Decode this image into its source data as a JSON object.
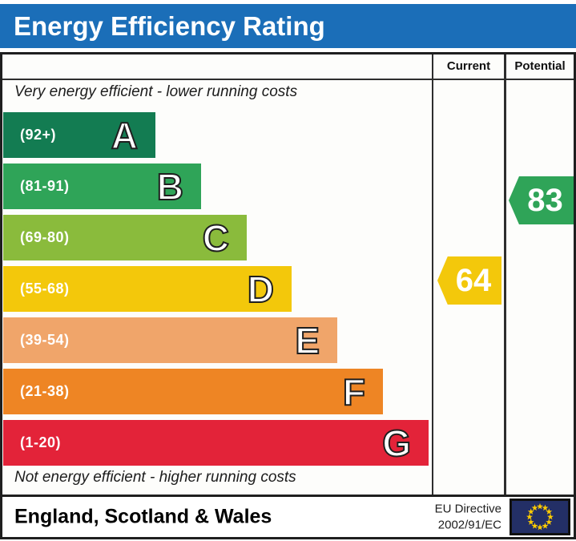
{
  "title": "Energy Efficiency Rating",
  "table": {
    "columns": {
      "current": "Current",
      "potential": "Potential"
    },
    "caption_top": "Very energy efficient - lower running costs",
    "caption_bottom": "Not energy efficient - higher running costs"
  },
  "bands": [
    {
      "letter": "A",
      "range": "(92+)",
      "min": 92,
      "max": 100,
      "color": "#137c52"
    },
    {
      "letter": "B",
      "range": "(81-91)",
      "min": 81,
      "max": 91,
      "color": "#2fa458"
    },
    {
      "letter": "C",
      "range": "(69-80)",
      "min": 69,
      "max": 80,
      "color": "#8abb3c"
    },
    {
      "letter": "D",
      "range": "(55-68)",
      "min": 55,
      "max": 68,
      "color": "#f3c80b"
    },
    {
      "letter": "E",
      "range": "(39-54)",
      "min": 39,
      "max": 54,
      "color": "#f0a56a"
    },
    {
      "letter": "F",
      "range": "(21-38)",
      "min": 21,
      "max": 38,
      "color": "#ee8524"
    },
    {
      "letter": "G",
      "range": "(1-20)",
      "min": 1,
      "max": 20,
      "color": "#e32339"
    }
  ],
  "ratings": {
    "current": {
      "label": "Current",
      "value": 64
    },
    "potential": {
      "label": "Potential",
      "value": 83
    }
  },
  "footer": {
    "region": "England, Scotland & Wales",
    "directive_line1": "EU Directive",
    "directive_line2": "2002/91/EC"
  },
  "colors": {
    "header_blue": "#1b6eb8",
    "border_dark": "#1f1f1f",
    "eu_flag_blue": "#232f66",
    "eu_star_yellow": "#ffcc00"
  },
  "chart_data": {
    "type": "bar",
    "title": "Energy Efficiency Rating",
    "categories": [
      "A",
      "B",
      "C",
      "D",
      "E",
      "F",
      "G"
    ],
    "band_ranges": [
      "92+",
      "81-91",
      "69-80",
      "55-68",
      "39-54",
      "21-38",
      "1-20"
    ],
    "band_colors": [
      "#137c52",
      "#2fa458",
      "#8abb3c",
      "#f3c80b",
      "#f0a56a",
      "#ee8524",
      "#e32339"
    ],
    "bar_lengths_relative": [
      1,
      1.31,
      1.6,
      1.9,
      2.19,
      2.49,
      2.79
    ],
    "markers": [
      {
        "name": "Current",
        "value": 64,
        "band": "D",
        "color": "#f3c80b"
      },
      {
        "name": "Potential",
        "value": 83,
        "band": "B",
        "color": "#2fa458"
      }
    ],
    "annotations": [
      "Very energy efficient - lower running costs",
      "Not energy efficient - higher running costs"
    ],
    "legend_position": "right columns labelled Current and Potential",
    "footer": "England, Scotland & Wales — EU Directive 2002/91/EC"
  }
}
